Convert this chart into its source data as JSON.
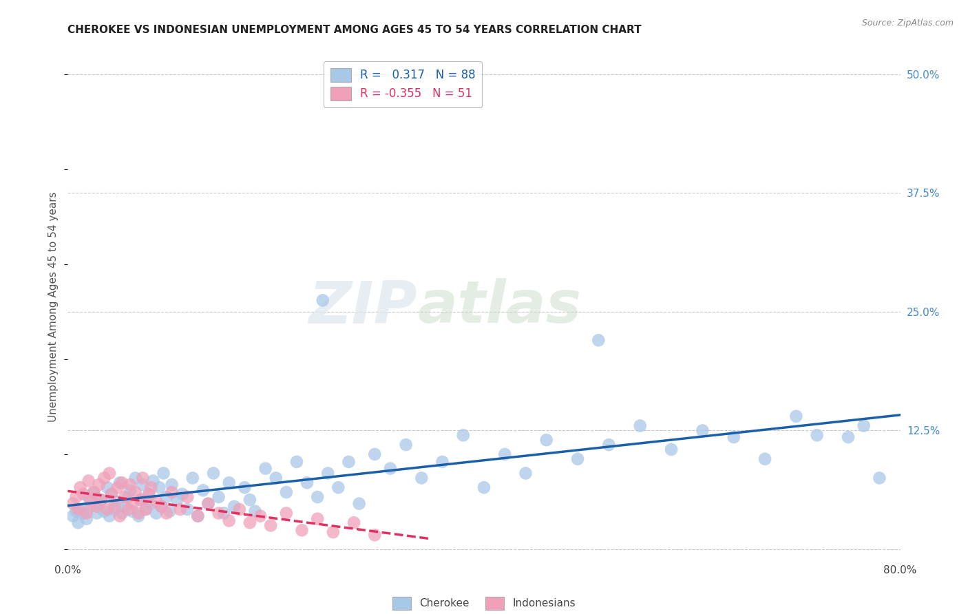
{
  "title": "CHEROKEE VS INDONESIAN UNEMPLOYMENT AMONG AGES 45 TO 54 YEARS CORRELATION CHART",
  "source": "Source: ZipAtlas.com",
  "ylabel": "Unemployment Among Ages 45 to 54 years",
  "xlim": [
    0.0,
    0.8
  ],
  "ylim": [
    -0.01,
    0.52
  ],
  "yticks_right": [
    0.0,
    0.125,
    0.25,
    0.375,
    0.5
  ],
  "yticklabels_right": [
    "",
    "12.5%",
    "25.0%",
    "37.5%",
    "50.0%"
  ],
  "grid_color": "#c8c8c8",
  "background_color": "#ffffff",
  "cherokee_color": "#a8c8e8",
  "indonesian_color": "#f0a0b8",
  "cherokee_line_color": "#1a5fa8",
  "indonesian_line_color": "#e03060",
  "legend_R_cherokee": "0.317",
  "legend_N_cherokee": "88",
  "legend_R_indonesian": "-0.355",
  "legend_N_indonesian": "51",
  "watermark_zip": "ZIP",
  "watermark_atlas": "atlas",
  "cherokee_x": [
    0.005,
    0.008,
    0.01,
    0.012,
    0.015,
    0.018,
    0.02,
    0.022,
    0.025,
    0.028,
    0.03,
    0.032,
    0.035,
    0.038,
    0.04,
    0.042,
    0.045,
    0.048,
    0.05,
    0.052,
    0.055,
    0.058,
    0.06,
    0.062,
    0.065,
    0.068,
    0.07,
    0.072,
    0.075,
    0.078,
    0.08,
    0.082,
    0.085,
    0.088,
    0.09,
    0.092,
    0.095,
    0.098,
    0.1,
    0.105,
    0.11,
    0.115,
    0.12,
    0.125,
    0.13,
    0.135,
    0.14,
    0.145,
    0.15,
    0.155,
    0.16,
    0.17,
    0.175,
    0.18,
    0.19,
    0.2,
    0.21,
    0.22,
    0.23,
    0.24,
    0.25,
    0.26,
    0.27,
    0.28,
    0.295,
    0.31,
    0.325,
    0.34,
    0.36,
    0.38,
    0.4,
    0.42,
    0.44,
    0.46,
    0.49,
    0.52,
    0.55,
    0.58,
    0.61,
    0.64,
    0.67,
    0.7,
    0.72,
    0.75,
    0.765,
    0.245,
    0.51,
    0.78
  ],
  "cherokee_y": [
    0.035,
    0.04,
    0.028,
    0.042,
    0.038,
    0.032,
    0.055,
    0.045,
    0.06,
    0.038,
    0.048,
    0.052,
    0.04,
    0.065,
    0.035,
    0.058,
    0.042,
    0.05,
    0.07,
    0.038,
    0.045,
    0.055,
    0.062,
    0.04,
    0.075,
    0.035,
    0.052,
    0.068,
    0.042,
    0.058,
    0.048,
    0.072,
    0.038,
    0.065,
    0.045,
    0.08,
    0.055,
    0.04,
    0.068,
    0.052,
    0.058,
    0.042,
    0.075,
    0.035,
    0.062,
    0.048,
    0.08,
    0.055,
    0.038,
    0.07,
    0.045,
    0.065,
    0.052,
    0.04,
    0.085,
    0.075,
    0.06,
    0.092,
    0.07,
    0.055,
    0.08,
    0.065,
    0.092,
    0.048,
    0.1,
    0.085,
    0.11,
    0.075,
    0.092,
    0.12,
    0.065,
    0.1,
    0.08,
    0.115,
    0.095,
    0.11,
    0.13,
    0.105,
    0.125,
    0.118,
    0.095,
    0.14,
    0.12,
    0.118,
    0.13,
    0.262,
    0.22,
    0.075
  ],
  "indonesian_x": [
    0.005,
    0.008,
    0.01,
    0.012,
    0.015,
    0.018,
    0.02,
    0.022,
    0.025,
    0.028,
    0.03,
    0.032,
    0.035,
    0.038,
    0.04,
    0.042,
    0.045,
    0.048,
    0.05,
    0.052,
    0.055,
    0.058,
    0.06,
    0.062,
    0.065,
    0.068,
    0.07,
    0.072,
    0.075,
    0.078,
    0.08,
    0.085,
    0.09,
    0.095,
    0.1,
    0.108,
    0.115,
    0.125,
    0.135,
    0.145,
    0.155,
    0.165,
    0.175,
    0.185,
    0.195,
    0.21,
    0.225,
    0.24,
    0.255,
    0.275,
    0.295
  ],
  "indonesian_y": [
    0.048,
    0.055,
    0.042,
    0.065,
    0.058,
    0.038,
    0.072,
    0.05,
    0.06,
    0.045,
    0.068,
    0.052,
    0.075,
    0.042,
    0.08,
    0.058,
    0.045,
    0.065,
    0.035,
    0.07,
    0.055,
    0.042,
    0.068,
    0.048,
    0.06,
    0.038,
    0.052,
    0.075,
    0.042,
    0.058,
    0.065,
    0.05,
    0.045,
    0.038,
    0.06,
    0.042,
    0.055,
    0.035,
    0.048,
    0.038,
    0.03,
    0.042,
    0.028,
    0.035,
    0.025,
    0.038,
    0.02,
    0.032,
    0.018,
    0.028,
    0.015
  ]
}
